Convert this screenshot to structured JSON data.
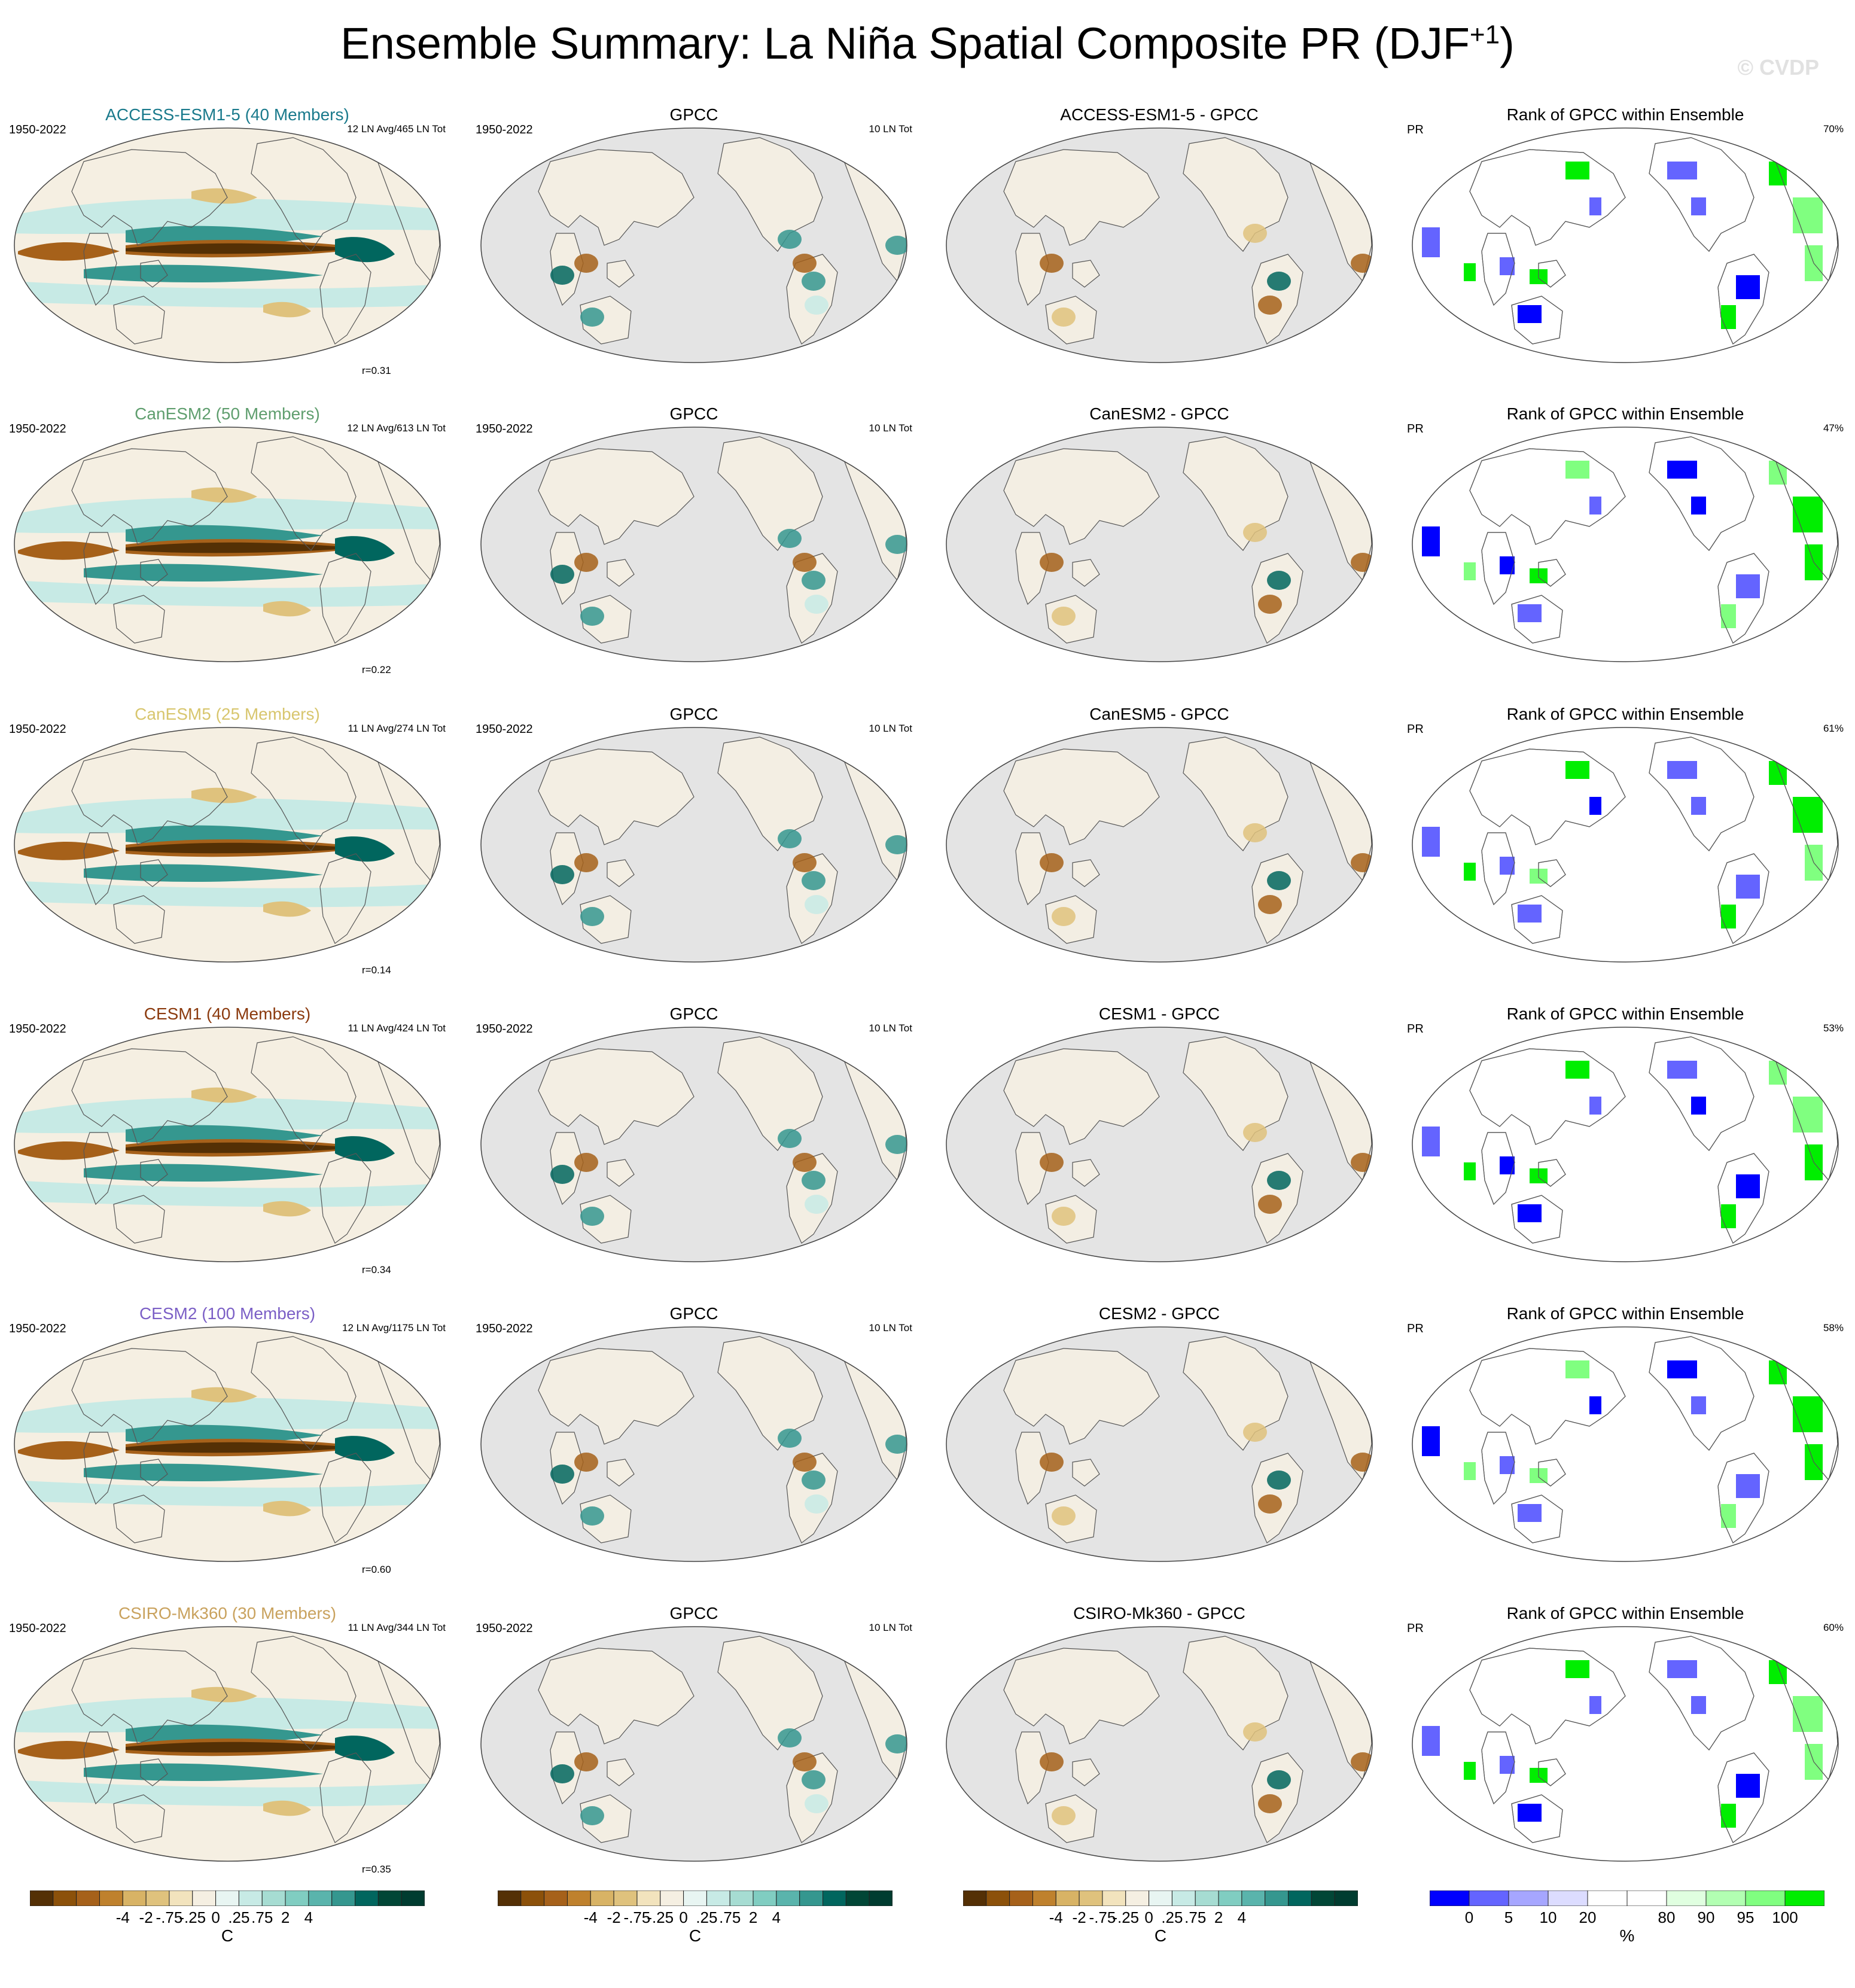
{
  "title": {
    "main": "Ensemble Summary: La Niña Spatial Composite PR (DJF",
    "sup": "+1",
    "close": ")"
  },
  "watermark": "© CVDP",
  "colors": {
    "brown_dark": "#543005",
    "brown": "#a6611a",
    "tan": "#dfc27d",
    "cream": "#f5efe2",
    "teal_light": "#c7eae5",
    "teal": "#35978f",
    "teal_dark": "#01665e",
    "ocean_gray": "#e4e4e4",
    "land_outline": "#555555",
    "rank_blue": "#0000ff",
    "rank_green": "#00ee00"
  },
  "rows": [
    {
      "model": {
        "title": "ACCESS-ESM1-5 (40 Members)",
        "title_color": "#1a7a8c",
        "years": "1950-2022",
        "counts": "12 LN Avg/465 LN Tot",
        "r": "r=0.31"
      },
      "obs": {
        "title": "GPCC",
        "years": "1950-2022",
        "counts": "10 LN Tot"
      },
      "diff": {
        "title": "ACCESS-ESM1-5 - GPCC"
      },
      "rank": {
        "title": "Rank of GPCC within Ensemble",
        "var": "PR",
        "pct": "70%"
      }
    },
    {
      "model": {
        "title": "CanESM2 (50 Members)",
        "title_color": "#5f9e6e",
        "years": "1950-2022",
        "counts": "12 LN Avg/613 LN Tot",
        "r": "r=0.22"
      },
      "obs": {
        "title": "GPCC",
        "years": "1950-2022",
        "counts": "10 LN Tot"
      },
      "diff": {
        "title": "CanESM2 - GPCC"
      },
      "rank": {
        "title": "Rank of GPCC within Ensemble",
        "var": "PR",
        "pct": "47%"
      }
    },
    {
      "model": {
        "title": "CanESM5 (25 Members)",
        "title_color": "#d8c66e",
        "years": "1950-2022",
        "counts": "11 LN Avg/274 LN Tot",
        "r": "r=0.14"
      },
      "obs": {
        "title": "GPCC",
        "years": "1950-2022",
        "counts": "10 LN Tot"
      },
      "diff": {
        "title": "CanESM5 - GPCC"
      },
      "rank": {
        "title": "Rank of GPCC within Ensemble",
        "var": "PR",
        "pct": "61%"
      }
    },
    {
      "model": {
        "title": "CESM1 (40 Members)",
        "title_color": "#8b3a0e",
        "years": "1950-2022",
        "counts": "11 LN Avg/424 LN Tot",
        "r": "r=0.34"
      },
      "obs": {
        "title": "GPCC",
        "years": "1950-2022",
        "counts": "10 LN Tot"
      },
      "diff": {
        "title": "CESM1 - GPCC"
      },
      "rank": {
        "title": "Rank of GPCC within Ensemble",
        "var": "PR",
        "pct": "53%"
      }
    },
    {
      "model": {
        "title": "CESM2 (100 Members)",
        "title_color": "#7b5fc6",
        "years": "1950-2022",
        "counts": "12 LN Avg/1175 LN Tot",
        "r": "r=0.60"
      },
      "obs": {
        "title": "GPCC",
        "years": "1950-2022",
        "counts": "10 LN Tot"
      },
      "diff": {
        "title": "CESM2 - GPCC"
      },
      "rank": {
        "title": "Rank of GPCC within Ensemble",
        "var": "PR",
        "pct": "58%"
      }
    },
    {
      "model": {
        "title": "CSIRO-Mk360 (30 Members)",
        "title_color": "#c9a25e",
        "years": "1950-2022",
        "counts": "11 LN Avg/344 LN Tot",
        "r": "r=0.35"
      },
      "obs": {
        "title": "GPCC",
        "years": "1950-2022",
        "counts": "10 LN Tot"
      },
      "diff": {
        "title": "CSIRO-Mk360 - GPCC"
      },
      "rank": {
        "title": "Rank of GPCC within Ensemble",
        "var": "PR",
        "pct": "60%"
      }
    }
  ],
  "colorbars": {
    "pr": {
      "colors": [
        "#543005",
        "#8c510a",
        "#a6611a",
        "#bf812d",
        "#d8b365",
        "#dfc27d",
        "#f2e3bd",
        "#f5efe2",
        "#e8f5f2",
        "#c7eae5",
        "#a6dcd2",
        "#80cdc1",
        "#5ab4ac",
        "#35978f",
        "#01665e",
        "#014636",
        "#003c30"
      ],
      "ticks": [
        "-4",
        "-2",
        "-.75",
        "-.25",
        "0",
        ".25",
        ".75",
        "2",
        "4"
      ],
      "unit": "C"
    },
    "rank": {
      "colors": [
        "#0000ff",
        "#6464ff",
        "#a6a6ff",
        "#dcdcff",
        "#ffffff",
        "#ffffff",
        "#e0ffe0",
        "#b2ffb2",
        "#80ff80",
        "#00ee00"
      ],
      "ticks": [
        "0",
        "5",
        "10",
        "20",
        "80",
        "90",
        "95",
        "100"
      ],
      "unit": "%"
    }
  }
}
